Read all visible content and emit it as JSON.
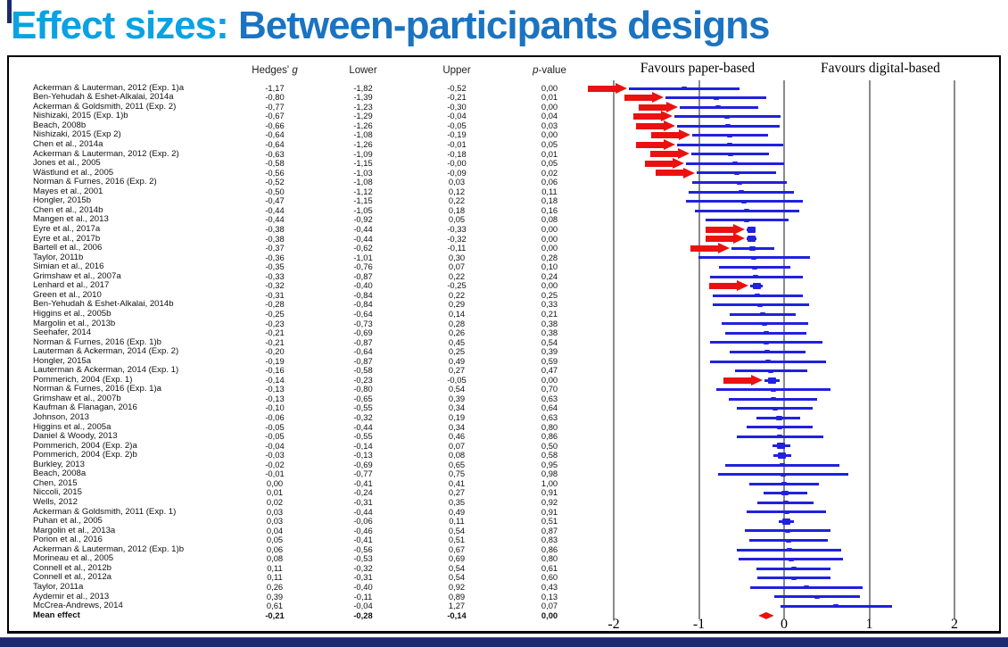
{
  "title": {
    "accent": "Effect sizes: ",
    "main": "Between-participants designs"
  },
  "table": {
    "headers": {
      "hedges_pre": "Hedges' ",
      "hedges_it": "g",
      "lower": "Lower",
      "upper": "Upper",
      "pvalue_it": "p",
      "pvalue_post": "-value"
    }
  },
  "colors": {
    "title_accent": "#09A2E3",
    "title_main": "#1B73C1",
    "ci_blue": "#2121DE",
    "arrow_red": "#EA1111",
    "grid_gray": "#8A8A8A",
    "navy": "#1B2970"
  },
  "chart_data": {
    "type": "forest_plot",
    "title": "Effect sizes: Between-participants designs",
    "xlabel_left": "Favours paper-based",
    "xlabel_right": "Favours digital-based",
    "x_axis": {
      "ticks": [
        -2,
        -1,
        0,
        1,
        2
      ],
      "min": -2.3,
      "max": 2.45
    },
    "decimal_separator": ",",
    "columns": [
      "study",
      "hedges_g",
      "lower",
      "upper",
      "p_value",
      "red_arrow"
    ],
    "studies": [
      [
        "Ackerman & Lauterman, 2012 (Exp. 1)a",
        "-1,17",
        "-1,82",
        "-0,52",
        "0,00",
        1
      ],
      [
        "Ben-Yehudah & Eshet-Alkalai, 2014a",
        "-0,80",
        "-1,39",
        "-0,21",
        "0,01",
        1
      ],
      [
        "Ackerman & Goldsmith, 2011 (Exp. 2)",
        "-0,77",
        "-1,23",
        "-0,30",
        "0,00",
        1
      ],
      [
        "Nishizaki, 2015 (Exp. 1)b",
        "-0,67",
        "-1,29",
        "-0,04",
        "0,04",
        1
      ],
      [
        "Beach, 2008b",
        "-0,66",
        "-1,26",
        "-0,05",
        "0,03",
        1
      ],
      [
        "Nishizaki, 2015 (Exp 2)",
        "-0,64",
        "-1,08",
        "-0,19",
        "0,00",
        1
      ],
      [
        "Chen et al., 2014a",
        "-0,64",
        "-1,26",
        "-0,01",
        "0,05",
        1
      ],
      [
        "Ackerman & Lauterman, 2012 (Exp. 2)",
        "-0,63",
        "-1,09",
        "-0,18",
        "0,01",
        1
      ],
      [
        "Jones et al., 2005",
        "-0,58",
        "-1,15",
        "-0,00",
        "0,05",
        1
      ],
      [
        "Wästlund et al., 2005",
        "-0,56",
        "-1,03",
        "-0,09",
        "0,02",
        1
      ],
      [
        "Norman & Furnes, 2016 (Exp. 2)",
        "-0,52",
        "-1,08",
        "0,03",
        "0,06",
        0
      ],
      [
        "Mayes et al., 2001",
        "-0,50",
        "-1,12",
        "0,12",
        "0,11",
        0
      ],
      [
        "Hongler, 2015b",
        "-0,47",
        "-1,15",
        "0,22",
        "0,18",
        0
      ],
      [
        "Chen et al., 2014b",
        "-0,44",
        "-1,05",
        "0,18",
        "0,16",
        0
      ],
      [
        "Mangen et al., 2013",
        "-0,44",
        "-0,92",
        "0,05",
        "0,08",
        0
      ],
      [
        "Eyre et al., 2017a",
        "-0,38",
        "-0,44",
        "-0,33",
        "0,00",
        1
      ],
      [
        "Eyre et al., 2017b",
        "-0,38",
        "-0,44",
        "-0,32",
        "0,00",
        1
      ],
      [
        "Bartell et al., 2006",
        "-0,37",
        "-0,62",
        "-0,11",
        "0,00",
        1
      ],
      [
        "Taylor, 2011b",
        "-0,36",
        "-1,01",
        "0,30",
        "0,28",
        0
      ],
      [
        "Simian et al., 2016",
        "-0,35",
        "-0,76",
        "0,07",
        "0,10",
        0
      ],
      [
        "Grimshaw et al., 2007a",
        "-0,33",
        "-0,87",
        "0,22",
        "0,24",
        0
      ],
      [
        "Lenhard et al., 2017",
        "-0,32",
        "-0,40",
        "-0,25",
        "0,00",
        1
      ],
      [
        "Green et al., 2010",
        "-0,31",
        "-0,84",
        "0,22",
        "0,25",
        0
      ],
      [
        "Ben-Yehudah & Eshet-Alkalai, 2014b",
        "-0,28",
        "-0,84",
        "0,29",
        "0,33",
        0
      ],
      [
        "Higgins et al., 2005b",
        "-0,25",
        "-0,64",
        "0,14",
        "0,21",
        0
      ],
      [
        "Margolin et al., 2013b",
        "-0,23",
        "-0,73",
        "0,28",
        "0,38",
        0
      ],
      [
        "Seehafer, 2014",
        "-0,21",
        "-0,69",
        "0,26",
        "0,38",
        0
      ],
      [
        "Norman & Furnes, 2016 (Exp. 1)b",
        "-0,21",
        "-0,87",
        "0,45",
        "0,54",
        0
      ],
      [
        "Lauterman & Ackerman, 2014 (Exp. 2)",
        "-0,20",
        "-0,64",
        "0,25",
        "0,39",
        0
      ],
      [
        "Hongler, 2015a",
        "-0,19",
        "-0,87",
        "0,49",
        "0,59",
        0
      ],
      [
        "Lauterman & Ackerman, 2014 (Exp. 1)",
        "-0,16",
        "-0,58",
        "0,27",
        "0,47",
        0
      ],
      [
        "Pommerich, 2004 (Exp. 1)",
        "-0,14",
        "-0,23",
        "-0,05",
        "0,00",
        1
      ],
      [
        "Norman & Furnes, 2016 (Exp. 1)a",
        "-0,13",
        "-0,80",
        "0,54",
        "0,70",
        0
      ],
      [
        "Grimshaw et al., 2007b",
        "-0,13",
        "-0,65",
        "0,39",
        "0,63",
        0
      ],
      [
        "Kaufman & Flanagan, 2016",
        "-0,10",
        "-0,55",
        "0,34",
        "0,64",
        0
      ],
      [
        "Johnson, 2013",
        "-0,06",
        "-0,32",
        "0,19",
        "0,63",
        0
      ],
      [
        "Higgins et al., 2005a",
        "-0,05",
        "-0,44",
        "0,34",
        "0,80",
        0
      ],
      [
        "Daniel & Woody, 2013",
        "-0,05",
        "-0,55",
        "0,46",
        "0,86",
        0
      ],
      [
        "Pommerich, 2004 (Exp. 2)a",
        "-0,04",
        "-0,14",
        "0,07",
        "0,50",
        0
      ],
      [
        "Pommerich, 2004 (Exp. 2)b",
        "-0,03",
        "-0,13",
        "0,08",
        "0,58",
        0
      ],
      [
        "Burkley, 2013",
        "-0,02",
        "-0,69",
        "0,65",
        "0,95",
        0
      ],
      [
        "Beach, 2008a",
        "-0,01",
        "-0,77",
        "0,75",
        "0,98",
        0
      ],
      [
        "Chen, 2015",
        "0,00",
        "-0,41",
        "0,41",
        "1,00",
        0
      ],
      [
        "Niccoli, 2015",
        "0,01",
        "-0,24",
        "0,27",
        "0,91",
        0
      ],
      [
        "Wells, 2012",
        "0,02",
        "-0,31",
        "0,35",
        "0,92",
        0
      ],
      [
        "Ackerman & Goldsmith, 2011 (Exp. 1)",
        "0,03",
        "-0,44",
        "0,49",
        "0,91",
        0
      ],
      [
        "Puhan et al., 2005",
        "0,03",
        "-0,06",
        "0,11",
        "0,51",
        0
      ],
      [
        "Margolin et al., 2013a",
        "0,04",
        "-0,46",
        "0,54",
        "0,87",
        0
      ],
      [
        "Porion et al., 2016",
        "0,05",
        "-0,41",
        "0,51",
        "0,83",
        0
      ],
      [
        "Ackerman & Lauterman, 2012 (Exp. 1)b",
        "0,06",
        "-0,56",
        "0,67",
        "0,86",
        0
      ],
      [
        "Morineau et al., 2005",
        "0,08",
        "-0,53",
        "0,69",
        "0,80",
        0
      ],
      [
        "Connell et al., 2012b",
        "0,11",
        "-0,32",
        "0,54",
        "0,61",
        0
      ],
      [
        "Connell et al., 2012a",
        "0,11",
        "-0,31",
        "0,54",
        "0,60",
        0
      ],
      [
        "Taylor, 2011a",
        "0,26",
        "-0,40",
        "0,92",
        "0,43",
        0
      ],
      [
        "Aydemir et al., 2013",
        "0,39",
        "-0,11",
        "0,89",
        "0,13",
        0
      ],
      [
        "McCrea-Andrews, 2014",
        "0,61",
        "-0,04",
        "1,27",
        "0,07",
        0
      ]
    ],
    "mean_effect": [
      "Mean effect",
      "-0,21",
      "-0,28",
      "-0,14",
      "0,00"
    ]
  }
}
